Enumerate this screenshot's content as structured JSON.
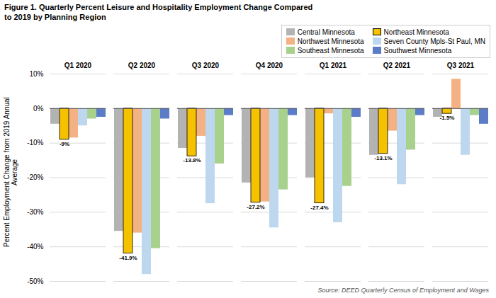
{
  "chart_data": {
    "type": "bar",
    "title": "Figure 1. Quarterly Percent Leisure and Hospitality Employment Change Compared\nto 2019 by Planning Region",
    "ylabel": "Percent Employment Change from 2019 Annual\nAverage",
    "source": "Source:  DEED Quarterly Census of Employment and Wages",
    "categories": [
      "Q1 2020",
      "Q2 2020",
      "Q3 2020",
      "Q4 2020",
      "Q1 2021",
      "Q2 2021",
      "Q3 2021"
    ],
    "series": [
      {
        "name": "Central Minnesota",
        "color": "#b3b3b3",
        "values": [
          -4.5,
          -35.5,
          -11.5,
          -21.5,
          -20.0,
          -13.5,
          -2.5
        ]
      },
      {
        "name": "Northeast Minnesota",
        "color": "#f5c200",
        "values": [
          -9.0,
          -41.9,
          -13.8,
          -27.2,
          -27.4,
          -13.1,
          -1.5
        ],
        "data_labels": true,
        "value_labels": [
          "-9%",
          "-41.9%",
          "-13.8%",
          "-27.2%",
          "-27.4%",
          "-13.1%",
          "-1.5%"
        ]
      },
      {
        "name": "Northwest Minnesota",
        "color": "#f4b183",
        "values": [
          -8.5,
          -36.0,
          -8.0,
          -27.0,
          -1.5,
          -6.5,
          8.5
        ]
      },
      {
        "name": "Seven County Mpls-St Paul, MN",
        "color": "#bdd7ee",
        "values": [
          -5.0,
          -48.0,
          -27.5,
          -34.5,
          -33.0,
          -22.0,
          -13.5
        ]
      },
      {
        "name": "Southeast Minnesota",
        "color": "#a9d18e",
        "values": [
          -3.0,
          -40.5,
          -16.0,
          -23.5,
          -22.5,
          -12.0,
          -2.0
        ]
      },
      {
        "name": "Southwest Minnesota",
        "color": "#5b7dc8",
        "values": [
          -2.5,
          -3.0,
          -2.0,
          -2.0,
          -2.5,
          -2.0,
          -4.5
        ]
      }
    ],
    "ylim": [
      -50,
      10
    ],
    "yticks": [
      {
        "value": -50,
        "label": "-50%"
      },
      {
        "value": -40,
        "label": "-40%"
      },
      {
        "value": -30,
        "label": "-30%"
      },
      {
        "value": -20,
        "label": "-20%"
      },
      {
        "value": -10,
        "label": "-10%"
      },
      {
        "value": 0,
        "label": "0%"
      },
      {
        "value": 10,
        "label": "10%"
      }
    ],
    "grid": true,
    "legend": "top"
  }
}
